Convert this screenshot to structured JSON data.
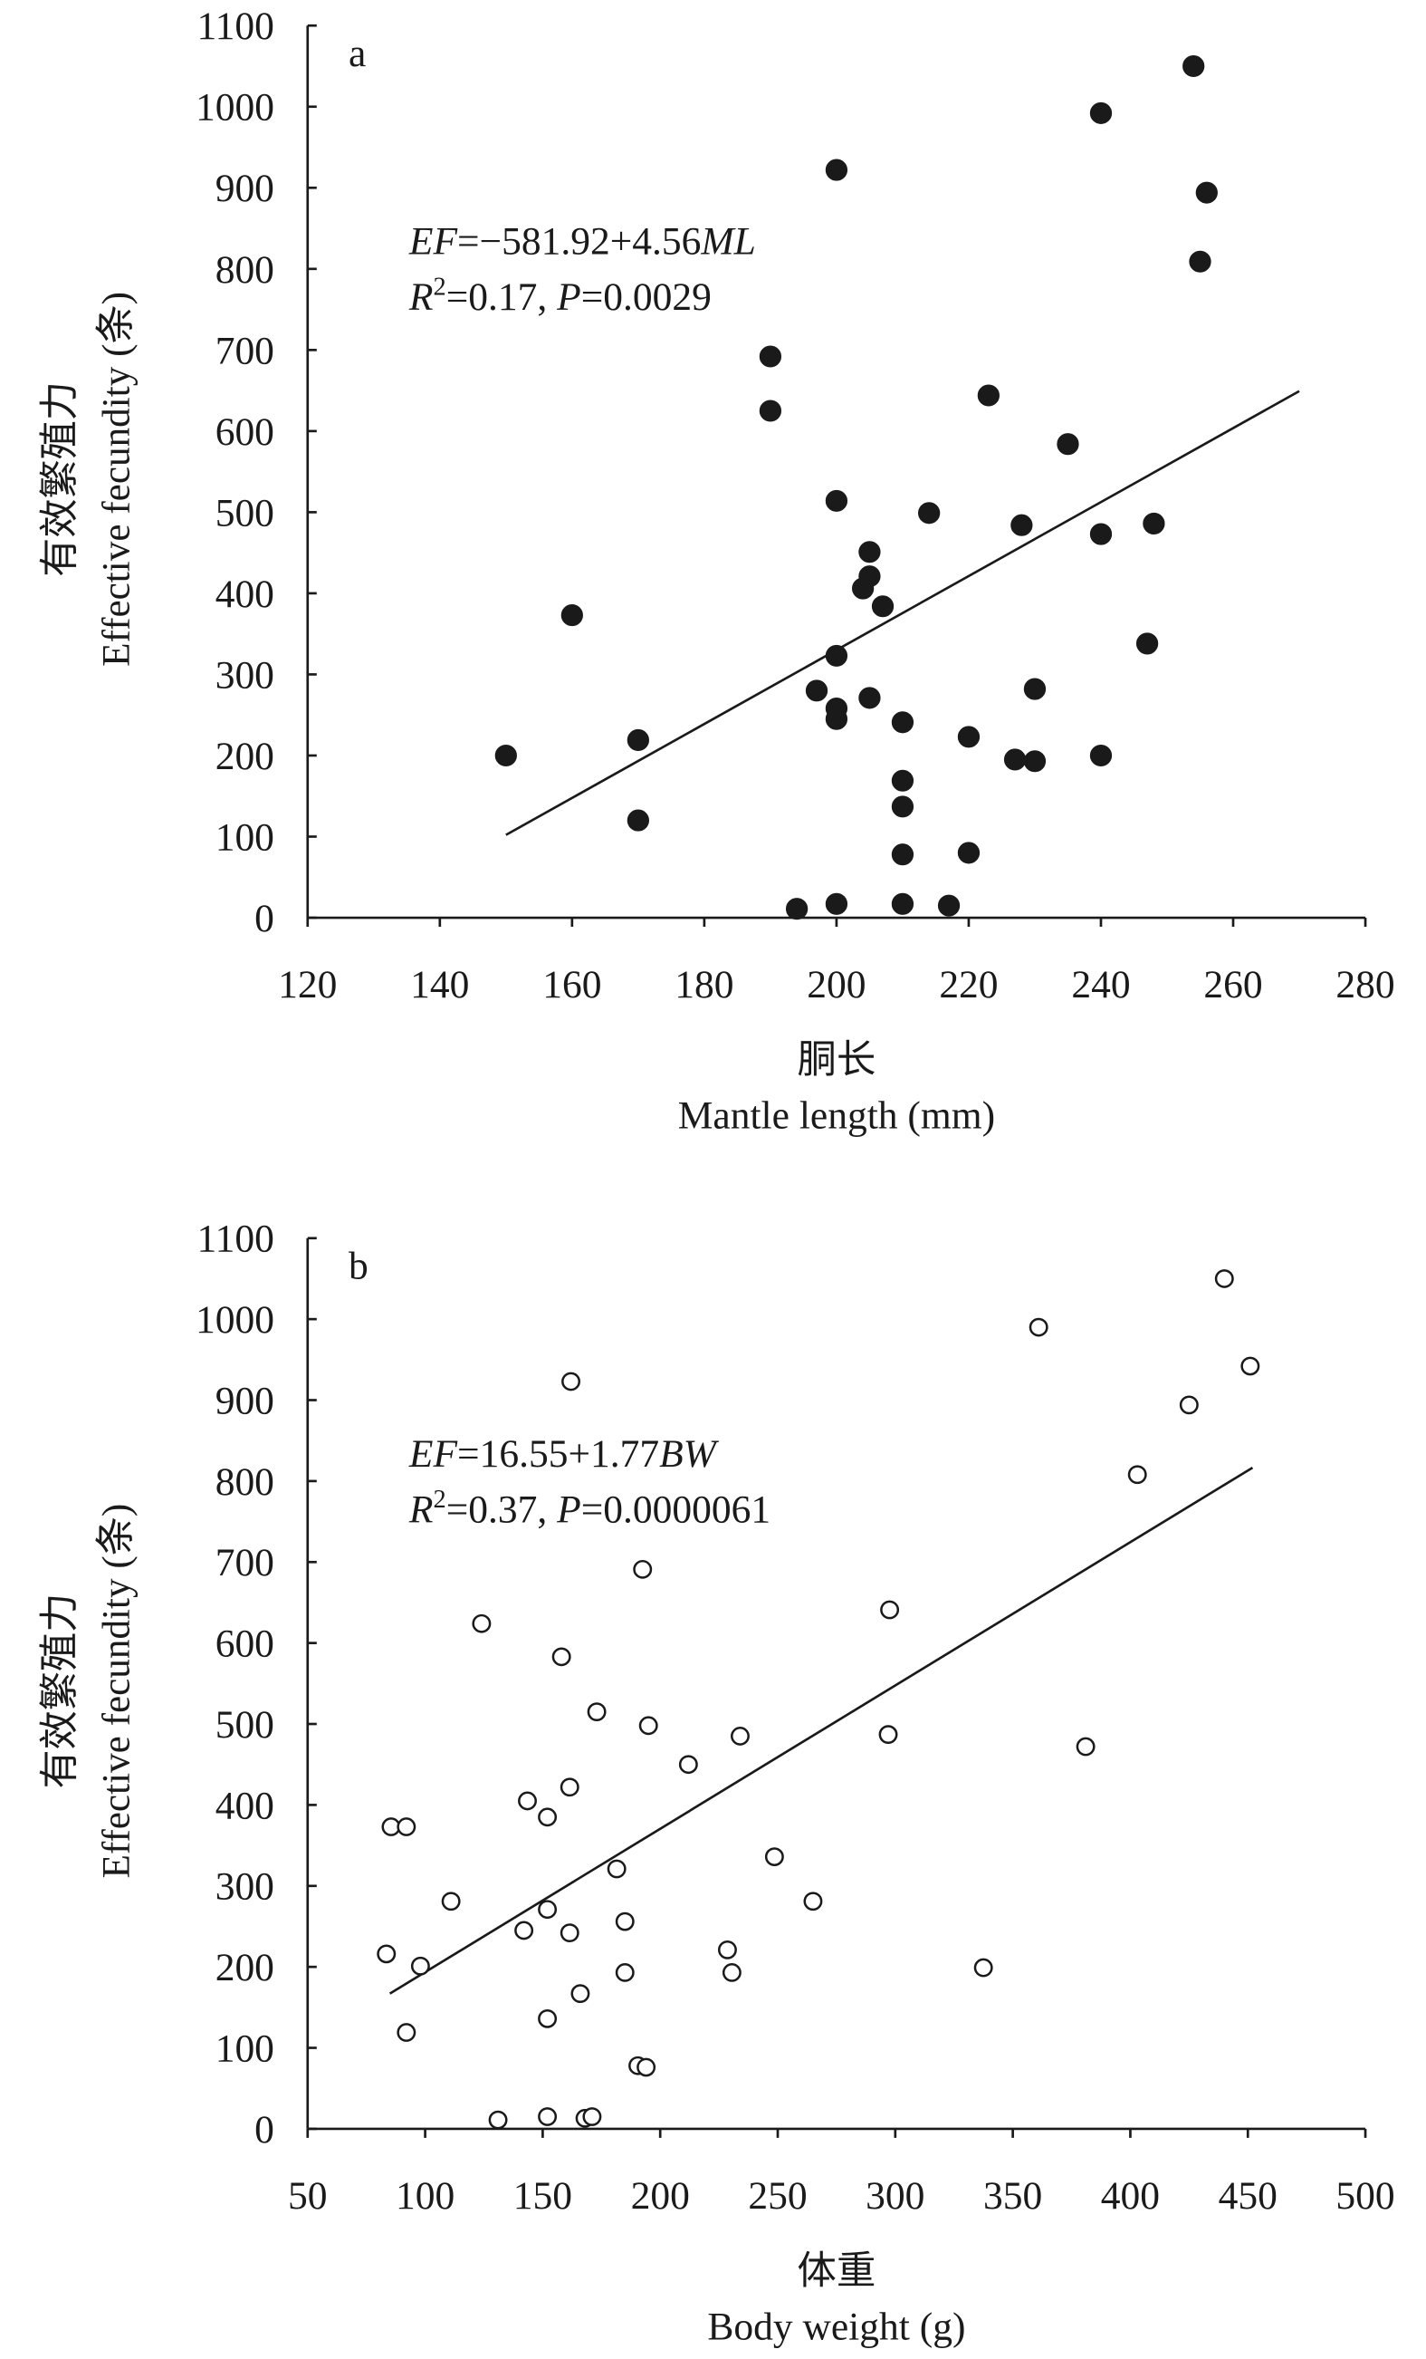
{
  "chart_data": [
    {
      "type": "scatter",
      "panel": "a",
      "marker": "filled",
      "color": "#1a1a1a",
      "xlabel": [
        "胴长",
        "Mantle length (mm)"
      ],
      "ylabel": [
        "有效繁殖力",
        "Effective fecundity (条)"
      ],
      "equation": [
        [
          {
            "text": "EF",
            "italic": true
          },
          {
            "text": "=−581.92+4.56",
            "italic": false
          },
          {
            "text": "ML",
            "italic": true
          }
        ],
        [
          {
            "text": "R",
            "italic": true
          },
          {
            "text": "2",
            "sup": true
          },
          {
            "text": "=0.17, ",
            "italic": false
          },
          {
            "text": "P",
            "italic": true
          },
          {
            "text": "=0.0029",
            "italic": false
          }
        ]
      ],
      "trendline": {
        "intercept": -581.92,
        "slope": 4.56,
        "xrange": [
          150,
          270
        ]
      },
      "xlim": [
        120,
        280
      ],
      "xticks": [
        120,
        140,
        160,
        180,
        200,
        220,
        240,
        260,
        280
      ],
      "ylim": [
        0,
        1100
      ],
      "yticks": [
        0,
        100,
        200,
        300,
        400,
        500,
        600,
        700,
        800,
        900,
        1000,
        1100
      ],
      "x": [
        150,
        160,
        170,
        170,
        190,
        190,
        194,
        197,
        200,
        200,
        200,
        200,
        200,
        200,
        205,
        205,
        204,
        207,
        205,
        210,
        210,
        210,
        210,
        210,
        214,
        217,
        220,
        220,
        223,
        227,
        228,
        230,
        230,
        235,
        240,
        240,
        240,
        247,
        248,
        254,
        255,
        256
      ],
      "values": [
        200,
        373,
        219,
        120,
        692,
        625,
        11,
        280,
        922,
        514,
        323,
        258,
        245,
        17,
        451,
        421,
        406,
        384,
        271,
        241,
        169,
        137,
        78,
        17,
        499,
        15,
        223,
        80,
        644,
        195,
        484,
        282,
        193,
        584,
        992,
        473,
        200,
        338,
        486,
        1050,
        809,
        894
      ]
    },
    {
      "type": "scatter",
      "panel": "b",
      "marker": "open",
      "color": "#1a1a1a",
      "xlabel": [
        "体重",
        "Body weight (g)"
      ],
      "ylabel": [
        "有效繁殖力",
        "Effective fecundity (条)"
      ],
      "equation": [
        [
          {
            "text": "EF",
            "italic": true
          },
          {
            "text": "=16.55+1.77",
            "italic": false
          },
          {
            "text": "BW",
            "italic": true
          }
        ],
        [
          {
            "text": "R",
            "italic": true
          },
          {
            "text": "2",
            "sup": true
          },
          {
            "text": "=0.37, ",
            "italic": false
          },
          {
            "text": "P",
            "italic": true
          },
          {
            "text": "=0.0000061",
            "italic": false
          }
        ]
      ],
      "trendline": {
        "intercept": 16.55,
        "slope": 1.77,
        "xrange": [
          85,
          452
        ]
      },
      "xlim": [
        50,
        500
      ],
      "xticks": [
        50,
        100,
        150,
        200,
        250,
        300,
        350,
        400,
        450,
        500
      ],
      "ylim": [
        0,
        1100
      ],
      "yticks": [
        0,
        100,
        200,
        300,
        400,
        500,
        600,
        700,
        800,
        900,
        1000,
        1100
      ],
      "x": [
        83.5,
        85.5,
        92,
        92,
        98,
        111,
        124,
        131,
        143.5,
        142,
        152,
        152,
        152,
        152,
        158,
        161.5,
        161.5,
        162,
        166,
        168,
        171,
        173,
        181.5,
        185,
        185,
        190.5,
        192.5,
        194,
        195,
        212,
        228.6,
        230.5,
        234,
        248.6,
        265,
        297,
        297.6,
        337.5,
        361,
        381,
        403,
        425,
        440,
        451
      ],
      "values": [
        216,
        373,
        373,
        119,
        201,
        281,
        624,
        11,
        405,
        245,
        136,
        385,
        271,
        15,
        583,
        422,
        242,
        923,
        167,
        13,
        15,
        515,
        321,
        256,
        193,
        78,
        691,
        76,
        498,
        450,
        221,
        193,
        485,
        336,
        281,
        487,
        641,
        199,
        990,
        472,
        808,
        894,
        1050,
        942
      ]
    }
  ]
}
